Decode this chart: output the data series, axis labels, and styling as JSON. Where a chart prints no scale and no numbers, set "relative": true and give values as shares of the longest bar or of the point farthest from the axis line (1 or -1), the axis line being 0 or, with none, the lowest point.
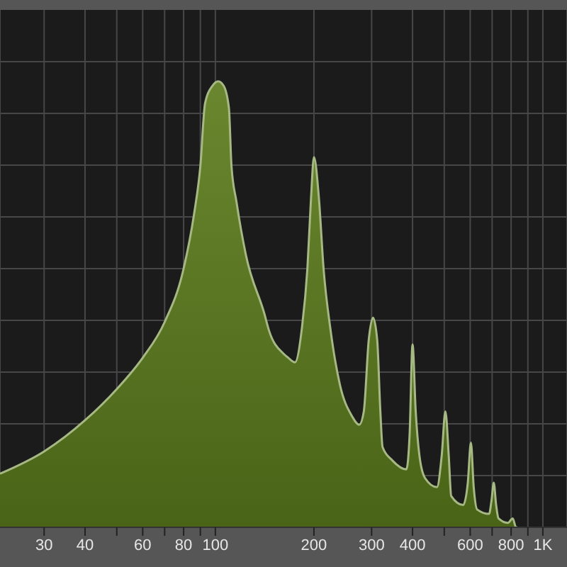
{
  "chart_data": {
    "type": "area",
    "relative": true,
    "log": "x",
    "grid": true,
    "tick_labels": "x",
    "color": "#5d7d1d",
    "x": [
      22,
      30,
      40,
      50,
      60,
      70,
      80,
      86,
      90,
      93,
      98,
      102,
      106,
      110,
      112,
      116,
      124,
      141,
      146,
      161,
      167,
      175,
      184,
      191,
      196,
      200,
      207,
      214,
      225,
      240,
      261,
      275,
      284,
      294,
      303,
      312,
      319,
      324,
      347,
      383,
      392,
      400,
      409,
      420,
      437,
      475,
      491,
      504,
      516,
      525,
      571,
      590,
      603,
      615,
      630,
      685,
      697,
      708,
      720,
      732,
      782,
      809,
      828,
      836
    ],
    "values": [
      0.12,
      0.17,
      0.24,
      0.31,
      0.38,
      0.46,
      0.58,
      0.7,
      0.81,
      0.95,
      0.99,
      1,
      0.99,
      0.94,
      0.81,
      0.73,
      0.61,
      0.48,
      0.44,
      0.39,
      0.38,
      0.37,
      0.45,
      0.58,
      0.74,
      0.83,
      0.74,
      0.58,
      0.44,
      0.32,
      0.25,
      0.23,
      0.26,
      0.42,
      0.47,
      0.42,
      0.26,
      0.18,
      0.15,
      0.13,
      0.21,
      0.41,
      0.26,
      0.16,
      0.11,
      0.09,
      0.16,
      0.26,
      0.16,
      0.07,
      0.05,
      0.1,
      0.19,
      0.09,
      0.04,
      0.03,
      0.06,
      0.1,
      0.05,
      0.02,
      0.01,
      0.02,
      0,
      0
    ],
    "xlim": [
      22,
      1185
    ],
    "xticks": [
      30,
      40,
      {
        "value": 50,
        "label": null
      },
      60,
      {
        "value": 70,
        "label": null
      },
      80,
      {
        "value": 90,
        "label": null
      },
      100,
      200,
      300,
      400,
      {
        "value": 500,
        "label": null
      },
      600,
      {
        "value": 700,
        "label": null
      },
      800,
      {
        "value": 900,
        "label": null
      },
      {
        "value": 1000,
        "label": "1K"
      }
    ]
  }
}
